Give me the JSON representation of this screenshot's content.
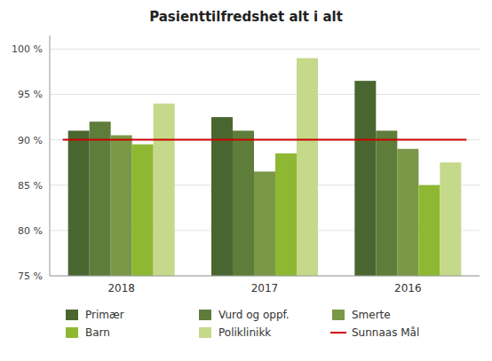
{
  "chart_data": {
    "type": "bar",
    "title": "Pasienttilfredshet alt i alt",
    "categories": [
      "2018",
      "2017",
      "2016"
    ],
    "series": [
      {
        "name": "Primær",
        "color": "#4a6630",
        "values": [
          91.0,
          92.5,
          96.5
        ]
      },
      {
        "name": "Vurd og oppf.",
        "color": "#5e7d3a",
        "values": [
          92.0,
          91.0,
          91.0
        ]
      },
      {
        "name": "Smerte",
        "color": "#7a9848",
        "values": [
          90.5,
          86.5,
          89.0
        ]
      },
      {
        "name": "Barn",
        "color": "#8eb832",
        "values": [
          89.5,
          88.5,
          85.0
        ]
      },
      {
        "name": "Poliklinikk",
        "color": "#c5d98a",
        "values": [
          94.0,
          99.0,
          87.5
        ]
      },
      {
        "name": "Sunnaas Mål",
        "type": "line",
        "color": "#cc0000",
        "values": [
          90.0,
          90.0,
          90.0
        ]
      }
    ],
    "ylim": [
      75,
      101.5
    ],
    "yticks": [
      {
        "value": 75,
        "label": "75 %"
      },
      {
        "value": 80,
        "label": "80 %"
      },
      {
        "value": 85,
        "label": "85 %"
      },
      {
        "value": 90,
        "label": "90 %"
      },
      {
        "value": 95,
        "label": "95 %"
      },
      {
        "value": 100,
        "label": "100 %"
      }
    ],
    "grid": true,
    "legend": "bottom"
  }
}
